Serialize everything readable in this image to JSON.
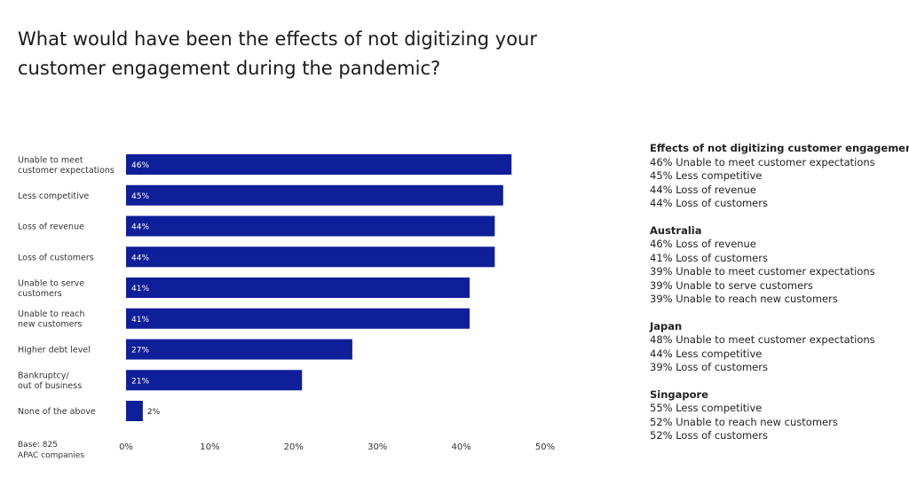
{
  "chart_data": {
    "type": "bar",
    "orientation": "horizontal",
    "title": "What would have been the effects of not digitizing your customer engagement during the pandemic?",
    "categories": [
      [
        "Unable to meet",
        "customer expectations"
      ],
      [
        "Less competitive"
      ],
      [
        "Loss of revenue"
      ],
      [
        "Loss of customers"
      ],
      [
        "Unable to serve",
        "customers"
      ],
      [
        "Unable to reach",
        "new customers"
      ],
      [
        "Higher debt level"
      ],
      [
        "Bankruptcy/",
        "out of business"
      ],
      [
        "None of the above"
      ]
    ],
    "values": [
      46,
      45,
      44,
      44,
      41,
      41,
      27,
      21,
      2
    ],
    "value_labels": [
      "46%",
      "45%",
      "44%",
      "44%",
      "41%",
      "41%",
      "27%",
      "21%",
      "2%"
    ],
    "xlim": [
      0,
      50
    ],
    "xticks": [
      0,
      10,
      20,
      30,
      40,
      50
    ],
    "xtick_labels": [
      "0%",
      "10%",
      "20%",
      "30%",
      "40%",
      "50%"
    ],
    "bar_color": "#0f1f99",
    "grid": false,
    "legend": "none"
  },
  "base_note": [
    "Base: 825",
    "APAC companies"
  ],
  "side_panel": [
    {
      "heading": "Effects of not digitizing customer engagement:",
      "items": [
        "46% Unable to meet customer expectations",
        "45% Less competitive",
        "44% Loss of revenue",
        "44% Loss of customers"
      ]
    },
    {
      "heading": "Australia",
      "items": [
        "46% Loss of revenue",
        "41% Loss of customers",
        "39% Unable to meet customer expectations",
        "39% Unable to serve customers",
        "39% Unable to reach new customers"
      ]
    },
    {
      "heading": "Japan",
      "items": [
        "48% Unable to meet customer expectations",
        "44% Less competitive",
        "39% Loss of customers"
      ]
    },
    {
      "heading": "Singapore",
      "items": [
        "55% Less competitive",
        "52% Unable to reach new customers",
        "52% Loss of customers"
      ]
    }
  ]
}
